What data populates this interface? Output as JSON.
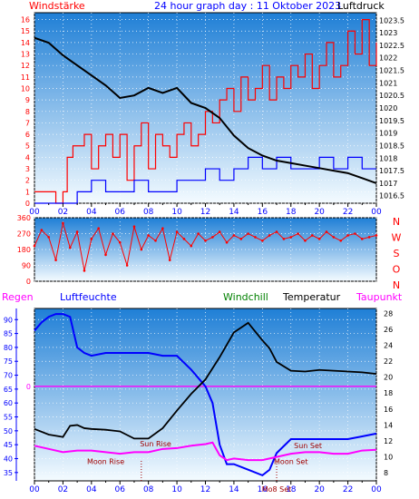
{
  "colors": {
    "background": "#ffffff",
    "plot_top": "#1f7fd6",
    "plot_bottom": "#f4fbff",
    "wind": "#ff0000",
    "gust": "#0000ff",
    "pressure": "#000000",
    "temperature": "#000000",
    "humidity": "#0000ff",
    "windchill": "#008000",
    "dewpoint": "#ff00ff",
    "rain": "#ff00ff",
    "astro": "#a00000",
    "grid": "#ffffff"
  },
  "header": {
    "left": "Windstärke",
    "title": "24 hour graph day : 11 Oktober 2023",
    "right": "Luftdruck"
  },
  "chart_data": [
    {
      "type": "line",
      "panel": "wind_pressure",
      "xlabel": "",
      "x_ticks": [
        "00",
        "02",
        "04",
        "06",
        "08",
        "10",
        "12",
        "14",
        "16",
        "18",
        "20",
        "22",
        "00"
      ],
      "y_left_ticks": [
        "0",
        "1",
        "2",
        "3",
        "4",
        "5",
        "6",
        "7",
        "8",
        "9",
        "10",
        "11",
        "12",
        "13",
        "14",
        "15",
        "16"
      ],
      "y_left_range": [
        0,
        16.6
      ],
      "y_right_ticks": [
        "1016.5",
        "1017",
        "1017.5",
        "1018",
        "1018.5",
        "1019",
        "1019.5",
        "1020",
        "1020.5",
        "1021",
        "1021.5",
        "1022",
        "1022.5",
        "1023",
        "1023.5"
      ],
      "y_right_range": [
        1016.2,
        1023.8
      ],
      "series": [
        {
          "name": "Windstärke",
          "axis": "left",
          "x": [
            0,
            0.5,
            1,
            1.5,
            2,
            2.3,
            2.7,
            3,
            3.5,
            4,
            4.5,
            5,
            5.5,
            6,
            6.5,
            7,
            7.5,
            8,
            8.5,
            9,
            9.5,
            10,
            10.5,
            11,
            11.5,
            12,
            12.5,
            13,
            13.5,
            14,
            14.5,
            15,
            15.5,
            16,
            16.5,
            17,
            17.5,
            18,
            18.5,
            19,
            19.5,
            20,
            20.5,
            21,
            21.5,
            22,
            22.5,
            23,
            23.5,
            24
          ],
          "values": [
            1,
            1,
            1,
            0,
            1,
            4,
            5,
            5,
            6,
            3,
            5,
            6,
            4,
            6,
            2,
            5,
            7,
            3,
            6,
            5,
            4,
            6,
            7,
            5,
            6,
            8,
            7,
            9,
            10,
            8,
            11,
            9,
            10,
            12,
            9,
            11,
            10,
            12,
            11,
            13,
            10,
            12,
            14,
            11,
            12,
            15,
            13,
            16,
            12,
            14
          ]
        },
        {
          "name": "Böen",
          "axis": "left",
          "x": [
            0,
            1,
            2,
            3,
            4,
            5,
            6,
            7,
            8,
            9,
            10,
            11,
            12,
            13,
            14,
            15,
            16,
            17,
            18,
            19,
            20,
            21,
            22,
            23,
            24
          ],
          "values": [
            0,
            0,
            0,
            1,
            2,
            1,
            1,
            2,
            1,
            1,
            2,
            2,
            3,
            2,
            3,
            4,
            3,
            4,
            3,
            3,
            4,
            3,
            4,
            3,
            3
          ]
        },
        {
          "name": "Luftdruck",
          "axis": "right",
          "x": [
            0,
            1,
            2,
            3,
            4,
            5,
            6,
            7,
            8,
            9,
            10,
            11,
            12,
            13,
            14,
            15,
            16,
            17,
            18,
            19,
            20,
            21,
            22,
            23,
            24
          ],
          "values": [
            1022.8,
            1022.6,
            1022.1,
            1021.7,
            1021.3,
            1020.9,
            1020.4,
            1020.5,
            1020.8,
            1020.6,
            1020.8,
            1020.2,
            1020.0,
            1019.6,
            1018.9,
            1018.4,
            1018.1,
            1017.9,
            1017.8,
            1017.7,
            1017.6,
            1017.5,
            1017.4,
            1017.2,
            1017.0
          ]
        }
      ]
    },
    {
      "type": "scatter",
      "panel": "wind_direction",
      "y_ticks": [
        "0",
        "90",
        "180",
        "270",
        "360"
      ],
      "y_range": [
        0,
        360
      ],
      "right_labels": [
        "N",
        "W",
        "S",
        "O",
        "N"
      ],
      "series": [
        {
          "name": "Windrichtung",
          "x": [
            0,
            0.5,
            1,
            1.5,
            2,
            2.5,
            3,
            3.5,
            4,
            4.5,
            5,
            5.5,
            6,
            6.5,
            7,
            7.5,
            8,
            8.5,
            9,
            9.5,
            10,
            10.5,
            11,
            11.5,
            12,
            12.5,
            13,
            13.5,
            14,
            14.5,
            15,
            15.5,
            16,
            16.5,
            17,
            17.5,
            18,
            18.5,
            19,
            19.5,
            20,
            20.5,
            21,
            21.5,
            22,
            22.5,
            23,
            23.5,
            24
          ],
          "values": [
            200,
            290,
            250,
            120,
            330,
            190,
            280,
            60,
            240,
            300,
            150,
            270,
            220,
            90,
            310,
            180,
            260,
            230,
            300,
            120,
            280,
            240,
            200,
            270,
            230,
            250,
            280,
            220,
            260,
            240,
            270,
            250,
            230,
            260,
            280,
            240,
            250,
            270,
            230,
            260,
            240,
            280,
            250,
            230,
            260,
            270,
            240,
            250,
            260
          ]
        }
      ]
    },
    {
      "type": "line",
      "panel": "temp_humidity",
      "x_ticks": [
        "00",
        "02",
        "04",
        "06",
        "08",
        "10",
        "12",
        "14",
        "16",
        "18",
        "20",
        "22",
        "00"
      ],
      "y_left_ticks": [
        "35",
        "40",
        "45",
        "50",
        "55",
        "60",
        "65",
        "70",
        "75",
        "80",
        "85",
        "90"
      ],
      "y_left_range": [
        32,
        94
      ],
      "y_right_ticks": [
        "8",
        "10",
        "12",
        "14",
        "16",
        "18",
        "20",
        "22",
        "24",
        "26",
        "28"
      ],
      "y_right_range": [
        7,
        28.6
      ],
      "rain_label": "0",
      "legend": [
        "Regen",
        "Luftfeuchte",
        "Windchill",
        "Temperatur",
        "Taupunkt"
      ],
      "series": [
        {
          "name": "Luftfeuchte",
          "axis": "left",
          "x": [
            0,
            0.5,
            1,
            1.5,
            2,
            2.5,
            3,
            3.5,
            4,
            5,
            6,
            7,
            8,
            9,
            10,
            11,
            12,
            12.5,
            13,
            13.5,
            14,
            15,
            16,
            16.5,
            17,
            18,
            19,
            20,
            21,
            22,
            23,
            24
          ],
          "values": [
            86,
            89,
            91,
            92,
            92,
            91,
            80,
            78,
            77,
            78,
            78,
            78,
            78,
            77,
            77,
            72,
            66,
            60,
            45,
            38,
            38,
            36,
            34,
            36,
            42,
            47,
            47,
            47,
            47,
            47,
            48,
            49
          ]
        },
        {
          "name": "Temperatur",
          "axis": "right",
          "x": [
            0,
            1,
            2,
            2.5,
            3,
            3.5,
            4,
            5,
            6,
            7,
            8,
            9,
            10,
            11,
            12,
            13,
            14,
            15,
            16,
            16.5,
            17,
            18,
            19,
            20,
            21,
            22,
            23,
            24
          ],
          "values": [
            13.5,
            12.8,
            12.5,
            13.9,
            14,
            13.6,
            13.5,
            13.4,
            13.2,
            12.3,
            12.3,
            13.6,
            15.8,
            17.9,
            19.7,
            22.5,
            25.6,
            26.8,
            24.6,
            23.6,
            21.9,
            20.8,
            20.7,
            20.9,
            20.8,
            20.7,
            20.6,
            20.4
          ]
        },
        {
          "name": "Taupunkt",
          "axis": "right",
          "x": [
            0,
            1,
            2,
            3,
            4,
            5,
            6,
            7,
            8,
            9,
            10,
            11,
            12,
            12.5,
            13,
            13.5,
            14,
            15,
            16,
            17,
            18,
            19,
            20,
            21,
            22,
            23,
            24
          ],
          "values": [
            11.4,
            11.0,
            10.6,
            10.8,
            10.8,
            10.6,
            10.4,
            10.6,
            10.6,
            11.0,
            11.1,
            11.4,
            11.6,
            11.8,
            10.2,
            9.6,
            9.8,
            9.6,
            9.6,
            10.0,
            10.4,
            10.6,
            10.6,
            10.4,
            10.4,
            10.8,
            10.9
          ]
        },
        {
          "name": "Regen",
          "axis": "left",
          "x": [
            0,
            24
          ],
          "values": [
            66,
            66
          ]
        }
      ],
      "annotations": [
        {
          "text": "Sun Rise",
          "x": 8.5,
          "y_right": 11.3
        },
        {
          "text": "Moon Rise",
          "x": 5.0,
          "y_right": 9.1
        },
        {
          "text": "Sun Set",
          "x": 19.2,
          "y_right": 11.1
        },
        {
          "text": "Moon Set",
          "x": 18.0,
          "y_right": 9.1
        },
        {
          "text": "Mo8 Set",
          "x": 17.0
        }
      ]
    }
  ],
  "panel3_legend": {
    "regen": "Regen",
    "luftfeuchte": "Luftfeuchte",
    "windchill": "Windchill",
    "temperatur": "Temperatur",
    "taupunkt": "Taupunkt"
  }
}
